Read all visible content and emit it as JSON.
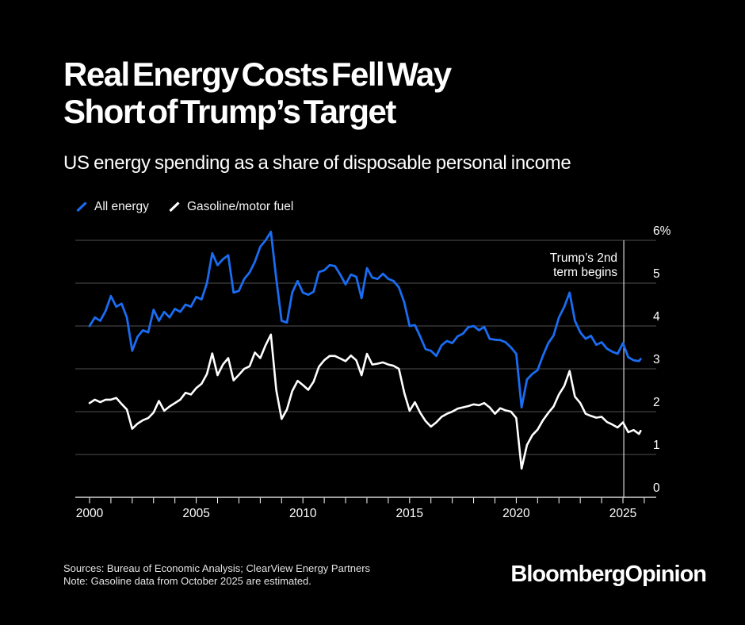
{
  "header": {
    "title_line1": "Real Energy Costs Fell Way",
    "title_line2": "Short of Trump’s Target",
    "subtitle": "US energy spending as a share of disposable personal income"
  },
  "legend": [
    {
      "label": "All energy",
      "color": "#1a6cf0"
    },
    {
      "label": "Gasoline/motor fuel",
      "color": "#ffffff"
    }
  ],
  "footer": {
    "sources": "Sources: Bureau of Economic Analysis; ClearView Energy Partners",
    "note": "Note: Gasoline data from October 2025 are estimated.",
    "brand": "BloombergOpinion"
  },
  "colors": {
    "background": "#000000",
    "gridline": "#515151",
    "axis": "#ffffff",
    "annotation_line": "#d7d7d7",
    "all_energy": "#1a6cf0",
    "gasoline": "#ffffff"
  },
  "chart_data": {
    "type": "line",
    "title": "US energy spending as a share of disposable personal income",
    "xlabel": "",
    "ylabel": "",
    "grid": "horizontal",
    "legend_position": "top-left",
    "x_range": [
      1999.3,
      2026.4
    ],
    "y_range": [
      0,
      6
    ],
    "y_ticks": [
      {
        "value": 6,
        "label": "6%"
      },
      {
        "value": 5,
        "label": "5"
      },
      {
        "value": 4,
        "label": "4"
      },
      {
        "value": 3,
        "label": "3"
      },
      {
        "value": 2,
        "label": "2"
      },
      {
        "value": 1,
        "label": "1"
      },
      {
        "value": 0,
        "label": "0"
      }
    ],
    "x_tick_labels": [
      {
        "value": 2000,
        "label": "2000"
      },
      {
        "value": 2005,
        "label": "2005"
      },
      {
        "value": 2010,
        "label": "2010"
      },
      {
        "value": 2015,
        "label": "2015"
      },
      {
        "value": 2020,
        "label": "2020"
      },
      {
        "value": 2025,
        "label": "2025"
      }
    ],
    "x_minor_tick_start": 2000,
    "x_minor_tick_end": 2026,
    "annotation": {
      "text_line1": "Trump’s 2nd",
      "text_line2": "term begins",
      "x_year": 2025.04
    },
    "x": [
      2000,
      2000.25,
      2000.5,
      2000.75,
      2001,
      2001.25,
      2001.5,
      2001.75,
      2002,
      2002.25,
      2002.5,
      2002.75,
      2003,
      2003.25,
      2003.5,
      2003.75,
      2004,
      2004.25,
      2004.5,
      2004.75,
      2005,
      2005.25,
      2005.5,
      2005.75,
      2006,
      2006.25,
      2006.5,
      2006.75,
      2007,
      2007.25,
      2007.5,
      2007.75,
      2008,
      2008.25,
      2008.5,
      2008.75,
      2009,
      2009.25,
      2009.5,
      2009.75,
      2010,
      2010.25,
      2010.5,
      2010.75,
      2011,
      2011.25,
      2011.5,
      2011.75,
      2012,
      2012.25,
      2012.5,
      2012.75,
      2013,
      2013.25,
      2013.5,
      2013.75,
      2014,
      2014.25,
      2014.5,
      2014.75,
      2015,
      2015.25,
      2015.5,
      2015.75,
      2016,
      2016.25,
      2016.5,
      2016.75,
      2017,
      2017.25,
      2017.5,
      2017.75,
      2018,
      2018.25,
      2018.5,
      2018.75,
      2019,
      2019.25,
      2019.5,
      2019.75,
      2020,
      2020.25,
      2020.5,
      2020.75,
      2021,
      2021.25,
      2021.5,
      2021.75,
      2022,
      2022.25,
      2022.5,
      2022.75,
      2023,
      2023.25,
      2023.5,
      2023.75,
      2024,
      2024.25,
      2024.5,
      2024.75,
      2025,
      2025.25,
      2025.5,
      2025.75,
      2025.83
    ],
    "series": [
      {
        "name": "All energy",
        "color": "#1a6cf0",
        "values": [
          4.0,
          4.2,
          4.12,
          4.35,
          4.7,
          4.45,
          4.52,
          4.2,
          3.42,
          3.75,
          3.9,
          3.85,
          4.38,
          4.12,
          4.33,
          4.2,
          4.4,
          4.33,
          4.5,
          4.45,
          4.68,
          4.62,
          5.0,
          5.7,
          5.42,
          5.56,
          5.65,
          4.78,
          4.82,
          5.1,
          5.25,
          5.5,
          5.85,
          6.0,
          6.2,
          5.1,
          4.12,
          4.08,
          4.78,
          5.05,
          4.78,
          4.73,
          4.8,
          5.26,
          5.3,
          5.42,
          5.4,
          5.2,
          4.97,
          5.2,
          5.15,
          4.65,
          5.35,
          5.13,
          5.1,
          5.22,
          5.1,
          5.05,
          4.9,
          4.55,
          4.0,
          4.02,
          3.75,
          3.46,
          3.42,
          3.3,
          3.55,
          3.65,
          3.6,
          3.76,
          3.82,
          3.97,
          4.0,
          3.9,
          3.98,
          3.7,
          3.68,
          3.67,
          3.62,
          3.5,
          3.35,
          2.1,
          2.75,
          2.88,
          2.97,
          3.31,
          3.6,
          3.78,
          4.2,
          4.45,
          4.78,
          4.12,
          3.85,
          3.7,
          3.77,
          3.56,
          3.62,
          3.47,
          3.4,
          3.35,
          3.6,
          3.27,
          3.2,
          3.18,
          3.23
        ]
      },
      {
        "name": "Gasoline/motor fuel",
        "color": "#ffffff",
        "values": [
          2.2,
          2.28,
          2.22,
          2.28,
          2.28,
          2.32,
          2.18,
          2.05,
          1.6,
          1.72,
          1.8,
          1.85,
          1.98,
          2.25,
          2.02,
          2.12,
          2.2,
          2.28,
          2.44,
          2.4,
          2.55,
          2.65,
          2.88,
          3.36,
          2.85,
          3.1,
          3.25,
          2.73,
          2.86,
          3.0,
          3.06,
          3.38,
          3.25,
          3.55,
          3.8,
          2.5,
          1.83,
          2.05,
          2.48,
          2.72,
          2.62,
          2.51,
          2.7,
          3.05,
          3.2,
          3.3,
          3.3,
          3.24,
          3.18,
          3.31,
          3.2,
          2.85,
          3.35,
          3.1,
          3.12,
          3.15,
          3.1,
          3.07,
          3.0,
          2.44,
          2.02,
          2.22,
          1.97,
          1.78,
          1.65,
          1.75,
          1.88,
          1.95,
          2.0,
          2.07,
          2.1,
          2.13,
          2.17,
          2.15,
          2.2,
          2.1,
          1.95,
          2.08,
          2.03,
          2.0,
          1.85,
          0.67,
          1.22,
          1.45,
          1.58,
          1.8,
          1.97,
          2.12,
          2.4,
          2.6,
          2.95,
          2.35,
          2.2,
          1.95,
          1.9,
          1.86,
          1.88,
          1.76,
          1.7,
          1.63,
          1.75,
          1.52,
          1.57,
          1.48,
          1.55
        ]
      }
    ]
  }
}
